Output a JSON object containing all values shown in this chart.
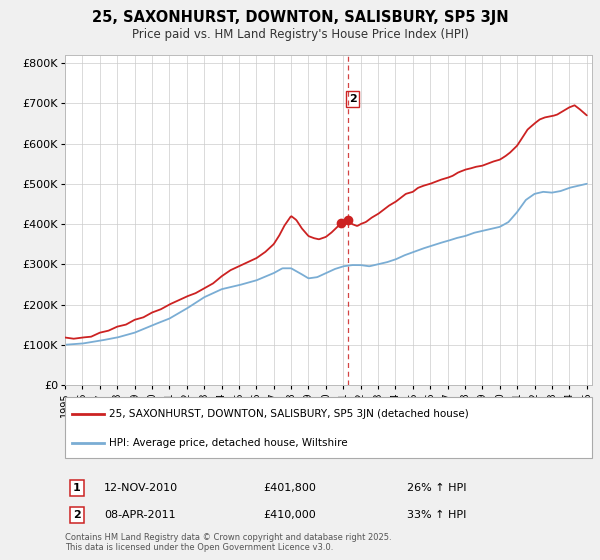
{
  "title": "25, SAXONHURST, DOWNTON, SALISBURY, SP5 3JN",
  "subtitle": "Price paid vs. HM Land Registry's House Price Index (HPI)",
  "legend_line1": "25, SAXONHURST, DOWNTON, SALISBURY, SP5 3JN (detached house)",
  "legend_line2": "HPI: Average price, detached house, Wiltshire",
  "annotation1_date": "12-NOV-2010",
  "annotation1_price": "£401,800",
  "annotation1_hpi": "26% ↑ HPI",
  "annotation2_date": "08-APR-2011",
  "annotation2_price": "£410,000",
  "annotation2_hpi": "33% ↑ HPI",
  "footer": "Contains HM Land Registry data © Crown copyright and database right 2025.\nThis data is licensed under the Open Government Licence v3.0.",
  "hpi_color": "#7aadd4",
  "price_color": "#cc2222",
  "vline_color": "#cc2222",
  "background_color": "#f0f0f0",
  "plot_bg_color": "#ffffff",
  "ylim": [
    0,
    820000
  ],
  "yticks": [
    0,
    100000,
    200000,
    300000,
    400000,
    500000,
    600000,
    700000,
    800000
  ],
  "ytick_labels": [
    "£0",
    "£100K",
    "£200K",
    "£300K",
    "£400K",
    "£500K",
    "£600K",
    "£700K",
    "£800K"
  ],
  "sale1_year": 2010.87,
  "sale2_year": 2011.27,
  "sale1_price": 401800,
  "sale2_price": 410000,
  "hpi_knots_x": [
    1995,
    1996,
    1997,
    1998,
    1999,
    2000,
    2001,
    2002,
    2003,
    2004,
    2005,
    2006,
    2007,
    2007.5,
    2008,
    2008.5,
    2009,
    2009.5,
    2010,
    2010.5,
    2011,
    2011.5,
    2012,
    2012.5,
    2013,
    2013.5,
    2014,
    2014.5,
    2015,
    2015.5,
    2016,
    2016.5,
    2017,
    2017.5,
    2018,
    2018.5,
    2019,
    2019.5,
    2020,
    2020.5,
    2021,
    2021.5,
    2022,
    2022.5,
    2023,
    2023.5,
    2024,
    2024.5,
    2025
  ],
  "hpi_knots_y": [
    100000,
    103000,
    110000,
    118000,
    130000,
    148000,
    165000,
    190000,
    218000,
    238000,
    248000,
    260000,
    278000,
    290000,
    290000,
    278000,
    265000,
    268000,
    278000,
    288000,
    295000,
    298000,
    298000,
    295000,
    300000,
    305000,
    312000,
    322000,
    330000,
    338000,
    345000,
    352000,
    358000,
    365000,
    370000,
    378000,
    383000,
    388000,
    393000,
    405000,
    430000,
    460000,
    475000,
    480000,
    478000,
    482000,
    490000,
    495000,
    500000
  ],
  "price_knots_x": [
    1995,
    1995.5,
    1996,
    1996.5,
    1997,
    1997.5,
    1998,
    1998.5,
    1999,
    1999.5,
    2000,
    2000.5,
    2001,
    2001.5,
    2002,
    2002.5,
    2003,
    2003.5,
    2004,
    2004.5,
    2005,
    2005.5,
    2006,
    2006.5,
    2007,
    2007.3,
    2007.6,
    2008,
    2008.3,
    2008.6,
    2009,
    2009.3,
    2009.6,
    2010,
    2010.3,
    2010.87,
    2011.27,
    2011.5,
    2011.8,
    2012,
    2012.3,
    2012.6,
    2013,
    2013.3,
    2013.6,
    2014,
    2014.3,
    2014.6,
    2015,
    2015.3,
    2015.6,
    2016,
    2016.3,
    2016.6,
    2017,
    2017.3,
    2017.6,
    2018,
    2018.3,
    2018.6,
    2019,
    2019.3,
    2019.6,
    2020,
    2020.3,
    2020.6,
    2021,
    2021.3,
    2021.6,
    2022,
    2022.3,
    2022.6,
    2023,
    2023.3,
    2023.6,
    2024,
    2024.3,
    2024.6,
    2025
  ],
  "price_knots_y": [
    118000,
    115000,
    118000,
    120000,
    130000,
    135000,
    145000,
    150000,
    162000,
    168000,
    180000,
    188000,
    200000,
    210000,
    220000,
    228000,
    240000,
    252000,
    270000,
    285000,
    295000,
    305000,
    315000,
    330000,
    350000,
    370000,
    395000,
    420000,
    410000,
    390000,
    370000,
    365000,
    362000,
    368000,
    378000,
    401800,
    410000,
    400000,
    395000,
    400000,
    405000,
    415000,
    425000,
    435000,
    445000,
    455000,
    465000,
    475000,
    480000,
    490000,
    495000,
    500000,
    505000,
    510000,
    515000,
    520000,
    528000,
    535000,
    538000,
    542000,
    545000,
    550000,
    555000,
    560000,
    568000,
    578000,
    595000,
    615000,
    635000,
    650000,
    660000,
    665000,
    668000,
    672000,
    680000,
    690000,
    695000,
    685000,
    670000
  ]
}
